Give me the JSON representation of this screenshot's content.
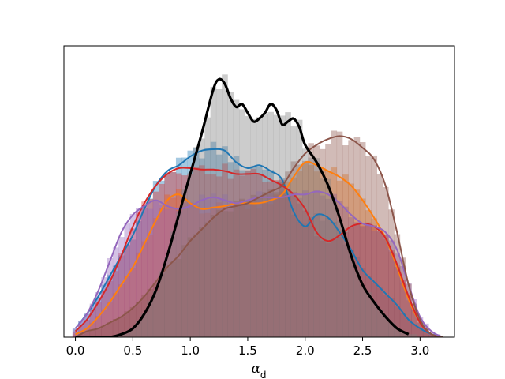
{
  "chart_data": {
    "type": "area",
    "title": "",
    "xlabel": "α",
    "xlabel_sub": "d",
    "ylabel": "",
    "xlim": [
      -0.1,
      3.3
    ],
    "ylim": [
      0,
      1.0
    ],
    "xticks": [
      0.0,
      0.5,
      1.0,
      1.5,
      2.0,
      2.5,
      3.0
    ],
    "xtick_labels": [
      "0.0",
      "0.5",
      "1.0",
      "1.5",
      "2.0",
      "2.5",
      "3.0"
    ],
    "show_yticks": false,
    "grid": false,
    "legend": "none",
    "hist_bin_width": 0.05,
    "series": [
      {
        "color": "#1f77b4",
        "x": [
          0.0,
          0.1,
          0.2,
          0.3,
          0.4,
          0.5,
          0.6,
          0.7,
          0.8,
          0.9,
          1.0,
          1.1,
          1.2,
          1.3,
          1.4,
          1.5,
          1.6,
          1.7,
          1.8,
          1.9,
          2.0,
          2.1,
          2.2,
          2.3,
          2.4,
          2.5,
          2.6,
          2.7,
          2.8,
          2.9,
          3.0,
          3.1,
          3.2
        ],
        "y": [
          0.03,
          0.08,
          0.14,
          0.21,
          0.28,
          0.35,
          0.44,
          0.52,
          0.57,
          0.59,
          0.62,
          0.64,
          0.645,
          0.64,
          0.6,
          0.58,
          0.59,
          0.57,
          0.54,
          0.43,
          0.38,
          0.42,
          0.41,
          0.36,
          0.3,
          0.23,
          0.19,
          0.15,
          0.11,
          0.06,
          0.03,
          0.01,
          0.0
        ]
      },
      {
        "color": "#ff7f0e",
        "x": [
          0.0,
          0.1,
          0.2,
          0.3,
          0.4,
          0.5,
          0.6,
          0.7,
          0.8,
          0.9,
          1.0,
          1.1,
          1.2,
          1.3,
          1.4,
          1.5,
          1.6,
          1.7,
          1.8,
          1.9,
          2.0,
          2.1,
          2.2,
          2.3,
          2.4,
          2.5,
          2.6,
          2.7,
          2.8,
          2.9,
          3.0,
          3.1,
          3.2
        ],
        "y": [
          0.01,
          0.03,
          0.07,
          0.12,
          0.18,
          0.24,
          0.32,
          0.4,
          0.47,
          0.49,
          0.46,
          0.44,
          0.445,
          0.45,
          0.46,
          0.46,
          0.46,
          0.47,
          0.49,
          0.55,
          0.6,
          0.59,
          0.57,
          0.55,
          0.52,
          0.47,
          0.41,
          0.34,
          0.24,
          0.13,
          0.05,
          0.01,
          0.0
        ]
      },
      {
        "color": "#d62728",
        "x": [
          0.0,
          0.1,
          0.2,
          0.3,
          0.4,
          0.5,
          0.6,
          0.7,
          0.8,
          0.9,
          1.0,
          1.1,
          1.2,
          1.3,
          1.4,
          1.5,
          1.6,
          1.7,
          1.8,
          1.9,
          2.0,
          2.1,
          2.2,
          2.3,
          2.4,
          2.5,
          2.6,
          2.7,
          2.8,
          2.9,
          3.0,
          3.1,
          3.2
        ],
        "y": [
          0.02,
          0.06,
          0.12,
          0.19,
          0.28,
          0.38,
          0.46,
          0.52,
          0.56,
          0.58,
          0.58,
          0.575,
          0.575,
          0.57,
          0.56,
          0.56,
          0.56,
          0.54,
          0.52,
          0.49,
          0.44,
          0.36,
          0.33,
          0.35,
          0.38,
          0.39,
          0.38,
          0.34,
          0.25,
          0.14,
          0.05,
          0.01,
          0.0
        ]
      },
      {
        "color": "#9467bd",
        "x": [
          0.0,
          0.1,
          0.2,
          0.3,
          0.4,
          0.5,
          0.6,
          0.7,
          0.8,
          0.9,
          1.0,
          1.1,
          1.2,
          1.3,
          1.4,
          1.5,
          1.6,
          1.7,
          1.8,
          1.9,
          2.0,
          2.1,
          2.2,
          2.3,
          2.4,
          2.5,
          2.6,
          2.7,
          2.8,
          2.9,
          3.0,
          3.1,
          3.2
        ],
        "y": [
          0.03,
          0.08,
          0.16,
          0.26,
          0.36,
          0.42,
          0.45,
          0.47,
          0.45,
          0.44,
          0.45,
          0.47,
          0.48,
          0.47,
          0.46,
          0.47,
          0.48,
          0.48,
          0.48,
          0.49,
          0.49,
          0.5,
          0.49,
          0.46,
          0.42,
          0.39,
          0.38,
          0.36,
          0.3,
          0.18,
          0.07,
          0.02,
          0.0
        ]
      },
      {
        "color": "#8c564b",
        "x": [
          0.0,
          0.1,
          0.2,
          0.3,
          0.4,
          0.5,
          0.6,
          0.7,
          0.8,
          0.9,
          1.0,
          1.1,
          1.2,
          1.3,
          1.4,
          1.5,
          1.6,
          1.7,
          1.8,
          1.9,
          2.0,
          2.1,
          2.2,
          2.3,
          2.4,
          2.5,
          2.6,
          2.7,
          2.8,
          2.9,
          3.0,
          3.1,
          3.2
        ],
        "y": [
          0.0,
          0.02,
          0.03,
          0.05,
          0.07,
          0.1,
          0.14,
          0.19,
          0.24,
          0.28,
          0.33,
          0.37,
          0.41,
          0.44,
          0.45,
          0.46,
          0.48,
          0.5,
          0.52,
          0.58,
          0.63,
          0.66,
          0.68,
          0.69,
          0.68,
          0.65,
          0.61,
          0.52,
          0.36,
          0.18,
          0.06,
          0.01,
          0.0
        ]
      },
      {
        "color": "#000000",
        "x": [
          0.0,
          0.1,
          0.2,
          0.3,
          0.4,
          0.5,
          0.6,
          0.7,
          0.8,
          0.9,
          1.0,
          1.1,
          1.2,
          1.25,
          1.3,
          1.35,
          1.4,
          1.45,
          1.5,
          1.55,
          1.6,
          1.65,
          1.7,
          1.75,
          1.8,
          1.85,
          1.9,
          1.95,
          2.0,
          2.1,
          2.2,
          2.3,
          2.4,
          2.5,
          2.6,
          2.7,
          2.8,
          2.9
        ],
        "y": [
          0.0,
          0.0,
          0.0,
          0.0,
          0.01,
          0.03,
          0.08,
          0.16,
          0.28,
          0.42,
          0.56,
          0.7,
          0.85,
          0.885,
          0.87,
          0.82,
          0.79,
          0.8,
          0.77,
          0.74,
          0.75,
          0.77,
          0.8,
          0.78,
          0.73,
          0.74,
          0.75,
          0.72,
          0.66,
          0.6,
          0.52,
          0.41,
          0.28,
          0.18,
          0.12,
          0.07,
          0.03,
          0.01
        ]
      }
    ]
  }
}
